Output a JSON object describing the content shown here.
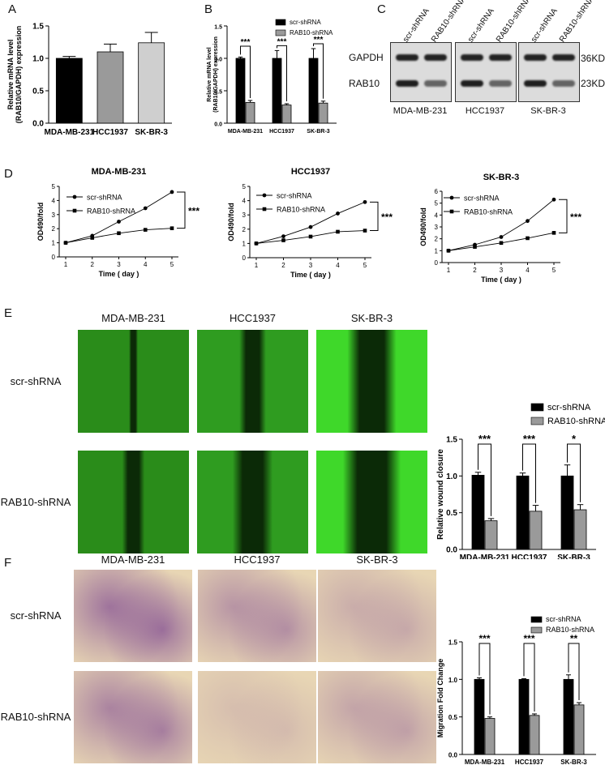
{
  "panels": {
    "A": "A",
    "B": "B",
    "C": "C",
    "D": "D",
    "E": "E",
    "F": "F"
  },
  "colors": {
    "black_bar": "#000000",
    "gray_bar": "#9a9a9a",
    "light_bar": "#cfcfcf",
    "green": "#2aa81a",
    "purple": "#7b3a93"
  },
  "chart_data": [
    {
      "id": "A",
      "type": "bar",
      "ylabel": "Relative mRNA level (RAB10/GAPDH) expression",
      "categories": [
        "MDA-MB-231",
        "HCC1937",
        "SK-BR-3"
      ],
      "values": [
        1.0,
        1.1,
        1.24
      ],
      "errors": [
        0.03,
        0.12,
        0.16
      ],
      "ylim": [
        0,
        1.5
      ],
      "yticks": [
        "0.0",
        "0.5",
        "1.0",
        "1.5"
      ]
    },
    {
      "id": "B",
      "type": "bar",
      "ylabel": "Relative mRNA level (RAB10/GAPDH) expression",
      "categories": [
        "MDA-MB-231",
        "HCC1937",
        "SK-BR-3"
      ],
      "series": [
        {
          "name": "scr-shRNA",
          "values": [
            1.0,
            1.0,
            1.0
          ],
          "errors": [
            0.02,
            0.12,
            0.15
          ]
        },
        {
          "name": "RAB10-shRNA",
          "values": [
            0.32,
            0.28,
            0.31
          ],
          "errors": [
            0.03,
            0.02,
            0.03
          ]
        }
      ],
      "significance": [
        "***",
        "***",
        "***"
      ],
      "ylim": [
        0,
        1.5
      ],
      "yticks": [
        "0.0",
        "0.5",
        "1.0",
        "1.5"
      ]
    },
    {
      "id": "D1",
      "type": "line",
      "title": "MDA-MB-231",
      "xlabel": "Time ( day )",
      "ylabel": "OD490/fold",
      "x": [
        1,
        2,
        3,
        4,
        5
      ],
      "ylim": [
        0,
        5
      ],
      "yticks": [
        "0",
        "1",
        "2",
        "3",
        "4",
        "5"
      ],
      "series": [
        {
          "name": "scr-shRNA",
          "values": [
            1.0,
            1.5,
            2.5,
            3.45,
            4.6
          ]
        },
        {
          "name": "RAB10-shRNA",
          "values": [
            1.0,
            1.35,
            1.68,
            1.92,
            2.03
          ]
        }
      ],
      "significance": "***"
    },
    {
      "id": "D2",
      "type": "line",
      "title": "HCC1937",
      "xlabel": "Time ( day )",
      "ylabel": "OD490/fold",
      "x": [
        1,
        2,
        3,
        4,
        5
      ],
      "ylim": [
        0,
        5
      ],
      "yticks": [
        "0",
        "1",
        "2",
        "3",
        "4",
        "5"
      ],
      "series": [
        {
          "name": "scr-shRNA",
          "values": [
            1.0,
            1.5,
            2.15,
            3.1,
            3.9
          ]
        },
        {
          "name": "RAB10-shRNA",
          "values": [
            1.0,
            1.22,
            1.48,
            1.82,
            1.9
          ]
        }
      ],
      "significance": "***"
    },
    {
      "id": "D3",
      "type": "line",
      "title": "SK-BR-3",
      "xlabel": "Time ( day )",
      "ylabel": "OD490/fold",
      "x": [
        1,
        2,
        3,
        4,
        5
      ],
      "ylim": [
        0,
        6
      ],
      "yticks": [
        "0",
        "1",
        "2",
        "3",
        "4",
        "5",
        "6"
      ],
      "series": [
        {
          "name": "scr-shRNA",
          "values": [
            1.0,
            1.5,
            2.15,
            3.5,
            5.3
          ]
        },
        {
          "name": "RAB10-shRNA",
          "values": [
            1.0,
            1.32,
            1.65,
            2.05,
            2.5
          ]
        }
      ],
      "significance": "***"
    },
    {
      "id": "E",
      "type": "bar",
      "ylabel": "Relative wound closure",
      "categories": [
        "MDA-MB-231",
        "HCC1937",
        "SK-BR-3"
      ],
      "series": [
        {
          "name": "scr-shRNA",
          "values": [
            1.01,
            1.0,
            1.0
          ],
          "errors": [
            0.04,
            0.04,
            0.15
          ]
        },
        {
          "name": "RAB10-shRNA",
          "values": [
            0.39,
            0.52,
            0.54
          ],
          "errors": [
            0.03,
            0.08,
            0.07
          ]
        }
      ],
      "significance": [
        "***",
        "***",
        "*"
      ],
      "ylim": [
        0,
        1.5
      ],
      "yticks": [
        "0.0",
        "0.5",
        "1.0",
        "1.5"
      ]
    },
    {
      "id": "F",
      "type": "bar",
      "ylabel": "Migration Fold Change",
      "categories": [
        "MDA-MB-231",
        "HCC1937",
        "SK-BR-3"
      ],
      "series": [
        {
          "name": "scr-shRNA",
          "values": [
            1.0,
            1.0,
            1.0
          ],
          "errors": [
            0.02,
            0.01,
            0.06
          ]
        },
        {
          "name": "RAB10-shRNA",
          "values": [
            0.48,
            0.52,
            0.66
          ],
          "errors": [
            0.02,
            0.02,
            0.03
          ]
        }
      ],
      "significance": [
        "***",
        "***",
        "**"
      ],
      "ylim": [
        0,
        1.5
      ],
      "yticks": [
        "0.0",
        "0.5",
        "1.0",
        "1.5"
      ]
    }
  ],
  "western_blot": {
    "lanes": [
      "scr-shRNA",
      "RAB10-shRNA",
      "scr-shRNA",
      "RAB10-shRNA",
      "scr-shRNA",
      "RAB10-shRNA"
    ],
    "rows": [
      "GAPDH",
      "RAB10"
    ],
    "weights": [
      "36KD",
      "23KD"
    ],
    "cell_lines": [
      "MDA-MB-231",
      "HCC1937",
      "SK-BR-3"
    ]
  },
  "image_panels": {
    "columns": [
      "MDA-MB-231",
      "HCC1937",
      "SK-BR-3"
    ],
    "rows": [
      "scr-shRNA",
      "RAB10-shRNA"
    ]
  }
}
